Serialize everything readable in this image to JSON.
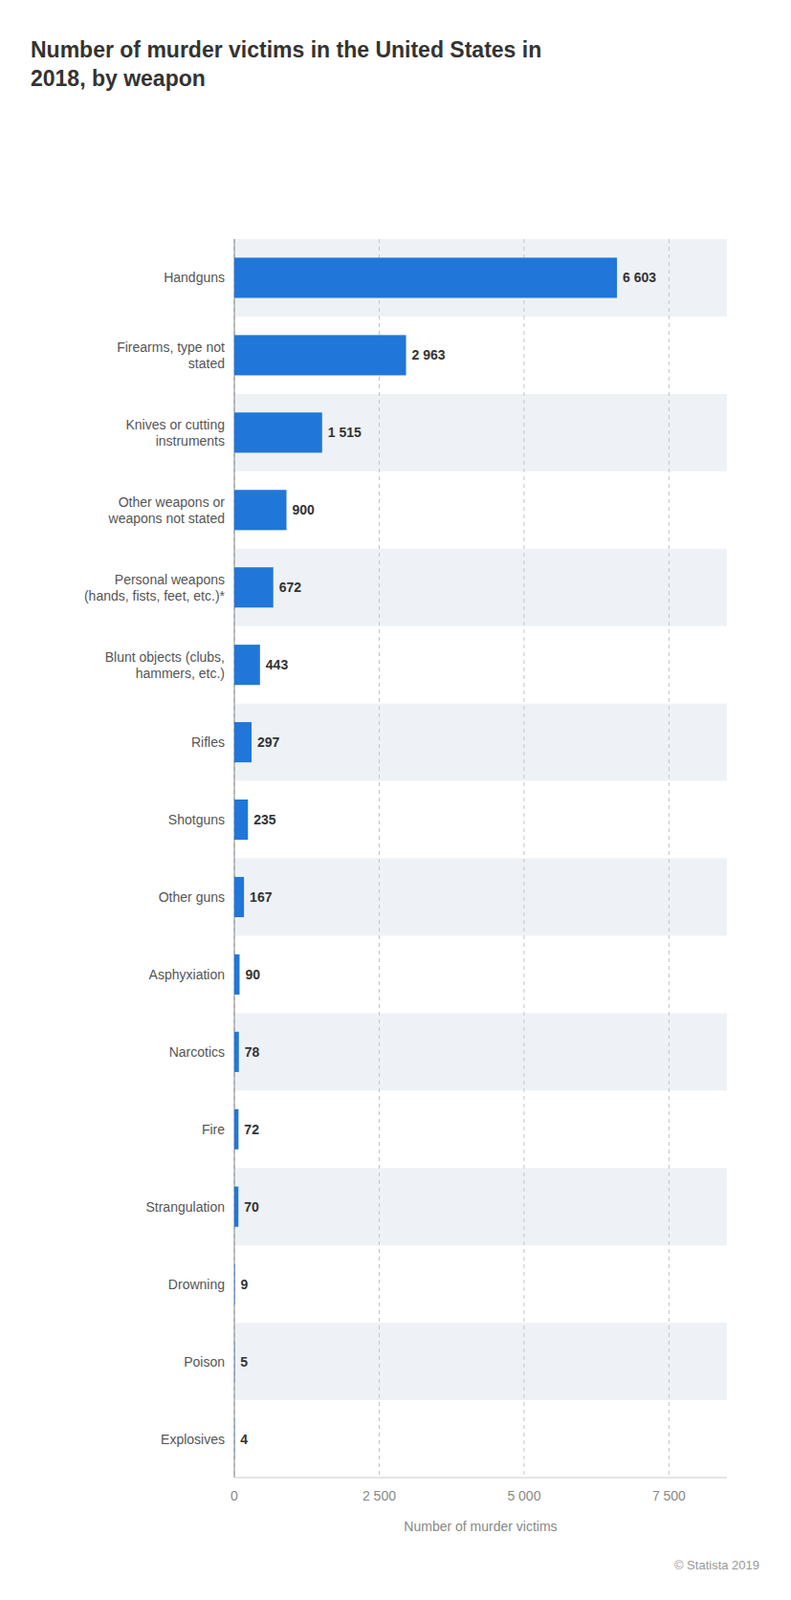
{
  "chart_data": {
    "type": "bar",
    "orientation": "horizontal",
    "title": "Number of murder victims in the United States in\n2018, by weapon",
    "categories": [
      "Explosives",
      "Poison",
      "Drowning",
      "Strangulation",
      "Fire",
      "Narcotics",
      "Asphyxiation",
      "Other guns",
      "Shotguns",
      "Rifles",
      "Blunt objects (clubs,\nhammers, etc.)",
      "Personal weapons\n(hands, fists, feet, etc.)*",
      "Other weapons or\nweapons not stated",
      "Knives or cutting\ninstruments",
      "Firearms, type not\nstated",
      "Handguns"
    ],
    "values": [
      4,
      5,
      9,
      70,
      72,
      78,
      90,
      167,
      235,
      297,
      443,
      672,
      900,
      1515,
      2963,
      6603
    ],
    "value_labels": [
      "4",
      "5",
      "9",
      "70",
      "72",
      "78",
      "90",
      "167",
      "235",
      "297",
      "443",
      "672",
      "900",
      "1 515",
      "2 963",
      "6 603"
    ],
    "data_labels": true,
    "color": "#2176d9",
    "xlabel": "Number of murder victims",
    "xlim": [
      0,
      8500
    ],
    "xticks": [
      0,
      {
        "value": 2500,
        "label": "2 500"
      },
      {
        "value": 5000,
        "label": "5 000"
      },
      {
        "value": 7500,
        "label": "7 500"
      }
    ],
    "grid": true,
    "annotations": [
      "© Statista 2019"
    ]
  }
}
